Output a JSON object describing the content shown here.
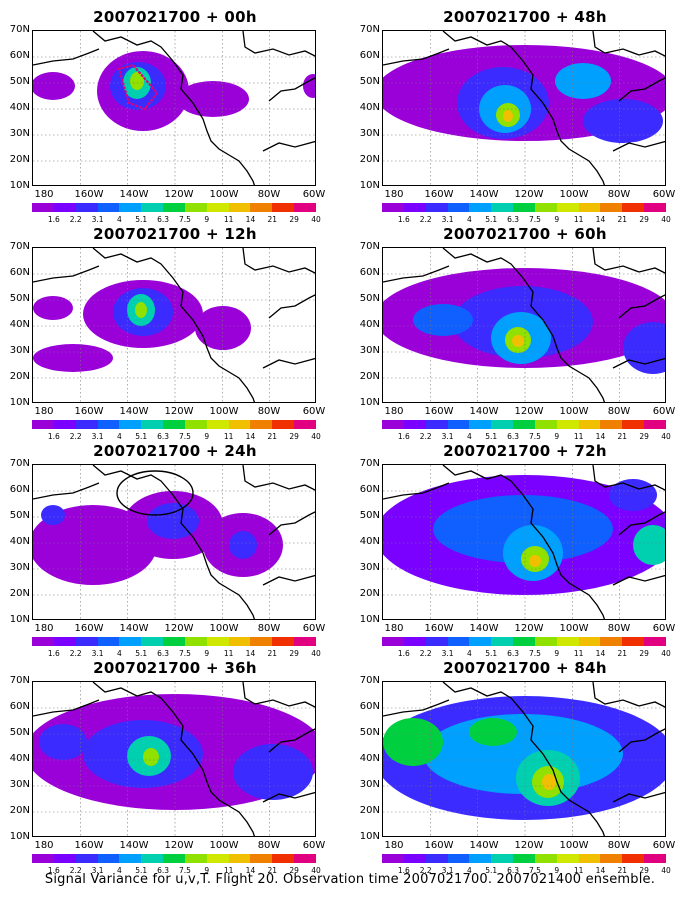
{
  "caption": "Signal Variance for u,v,T. Flight 20. Observation time 2007021700. 2007021400 ensemble.",
  "lat_labels": [
    "70N",
    "60N",
    "50N",
    "40N",
    "30N",
    "20N",
    "10N"
  ],
  "lon_labels": [
    "180",
    "160W",
    "140W",
    "120W",
    "100W",
    "80W",
    "60W"
  ],
  "colorbar": {
    "colors": [
      "#9a00d8",
      "#7a00ff",
      "#3b2bff",
      "#1060ff",
      "#00a0ff",
      "#00d0b0",
      "#00d040",
      "#90e000",
      "#d0e800",
      "#f0c000",
      "#f08000",
      "#f03000",
      "#e00080"
    ],
    "labels": [
      "1.6",
      "2.2",
      "3.1",
      "4",
      "5.1",
      "6.3",
      "7.5",
      "9",
      "11",
      "14",
      "21",
      "29",
      "40"
    ]
  },
  "panels": [
    {
      "title": "2007021700 + 00h",
      "annotation": "dotted-pink-box"
    },
    {
      "title": "2007021700 + 48h"
    },
    {
      "title": "2007021700 + 12h"
    },
    {
      "title": "2007021700 + 60h"
    },
    {
      "title": "2007021700 + 24h",
      "annotation": "black-ellipse"
    },
    {
      "title": "2007021700 + 72h"
    },
    {
      "title": "2007021700 + 36h"
    },
    {
      "title": "2007021700 + 84h"
    }
  ]
}
